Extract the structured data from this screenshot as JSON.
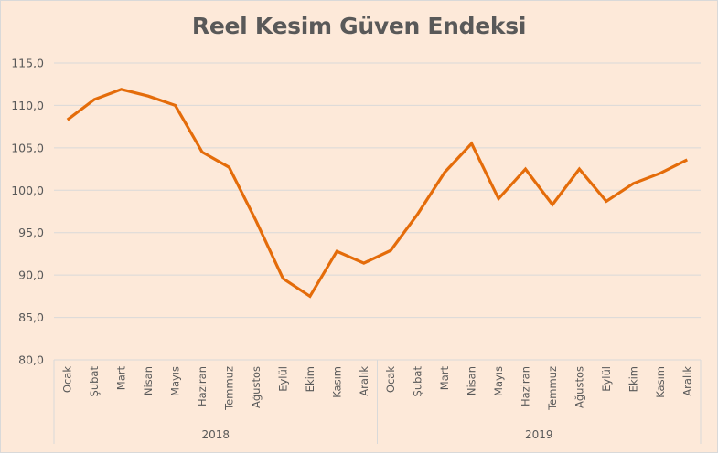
{
  "chart_data": {
    "type": "line",
    "title": "Reel Kesim Güven Endeksi",
    "xlabel": "",
    "ylabel": "",
    "ylim": [
      80,
      115
    ],
    "yticks": [
      "80,0",
      "85,0",
      "90,0",
      "95,0",
      "100,0",
      "105,0",
      "110,0",
      "115,0"
    ],
    "grid": true,
    "legend": "none",
    "groups": [
      {
        "label": "2018",
        "categories": [
          "Ocak",
          "Şubat",
          "Mart",
          "Nisan",
          "Mayıs",
          "Haziran",
          "Temmuz",
          "Ağustos",
          "Eylül",
          "Ekim",
          "Kasım",
          "Aralık"
        ]
      },
      {
        "label": "2019",
        "categories": [
          "Ocak",
          "Şubat",
          "Mart",
          "Nisan",
          "Mayıs",
          "Haziran",
          "Temmuz",
          "Ağustos",
          "Eylül",
          "Ekim",
          "Kasım",
          "Aralık"
        ]
      }
    ],
    "series": [
      {
        "name": "Reel Kesim Güven Endeksi",
        "color": "#E46C0A",
        "values": [
          108.3,
          110.7,
          111.9,
          111.1,
          110.0,
          104.5,
          102.7,
          96.4,
          89.6,
          87.5,
          92.8,
          91.4,
          92.9,
          97.2,
          102.1,
          105.5,
          99.0,
          102.5,
          98.3,
          102.5,
          98.7,
          100.8,
          102.0,
          103.6
        ]
      }
    ]
  },
  "colors": {
    "background": "#FDE9D9",
    "line": "#E46C0A",
    "gridline": "#D9D9D9",
    "text": "#595959"
  }
}
